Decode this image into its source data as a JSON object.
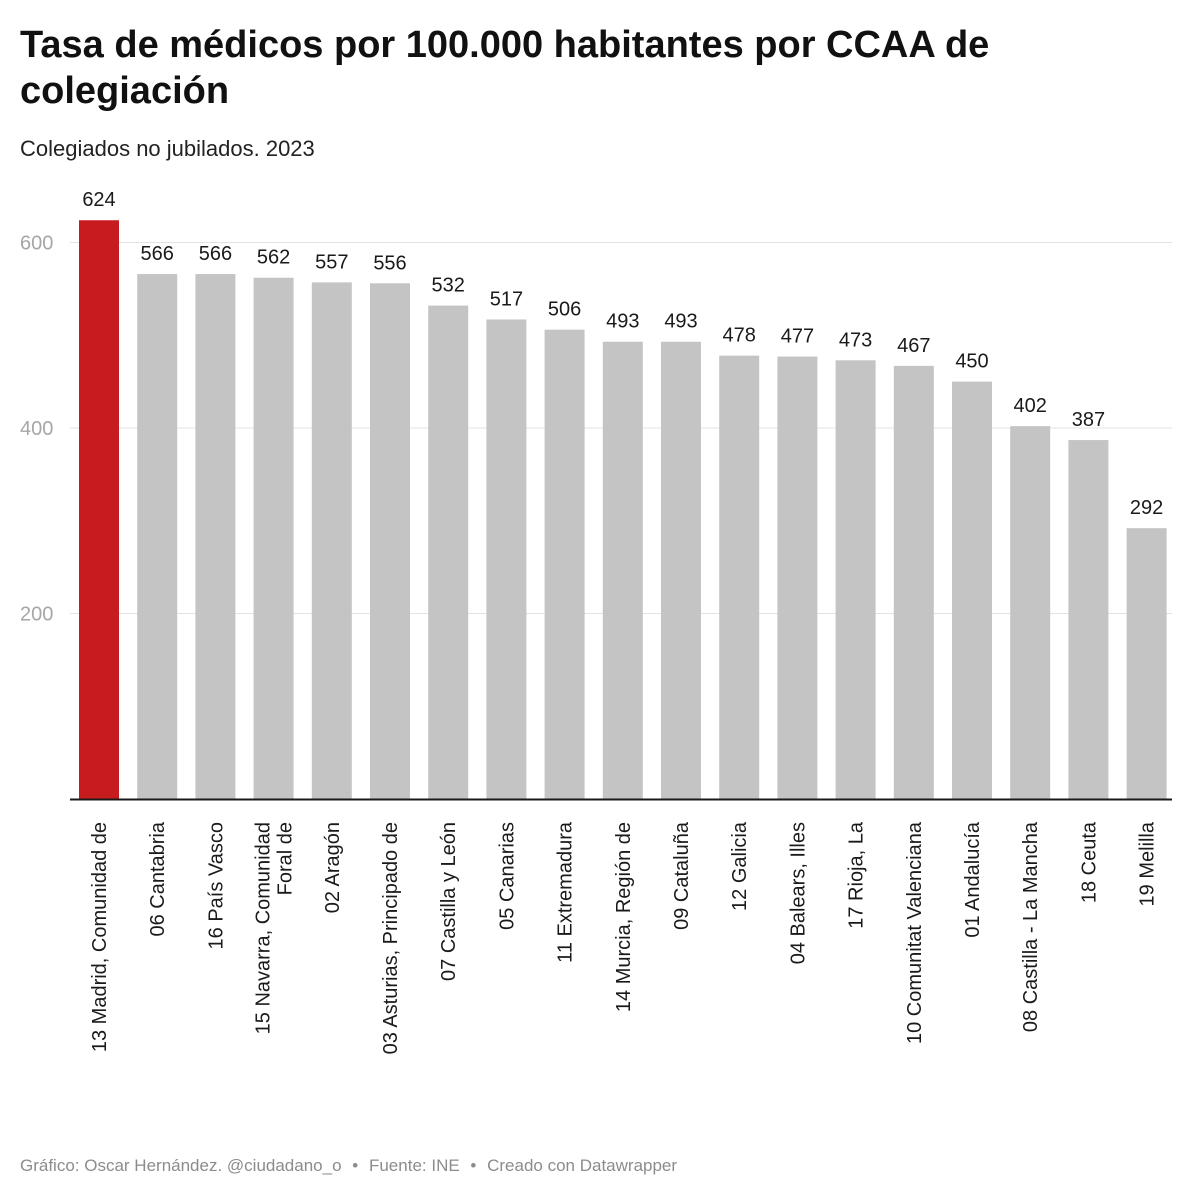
{
  "header": {
    "title": "Tasa de médicos por 100.000 habitantes por CCAA de colegiación",
    "subtitle": "Colegiados no jubilados. 2023"
  },
  "footer": {
    "credit": "Gráfico: Oscar Hernández. @ciudadano_o",
    "separator": "•",
    "source": "Fuente: INE",
    "tool": "Creado con Datawrapper"
  },
  "chart_data": {
    "type": "bar",
    "title": "Tasa de médicos por 100.000 habitantes por CCAA de colegiación",
    "subtitle": "Colegiados no jubilados. 2023",
    "xlabel": "",
    "ylabel": "",
    "ylim": [
      0,
      650
    ],
    "yticks": [
      200,
      400,
      600
    ],
    "grid": true,
    "categories": [
      "13 Madrid, Comunidad de",
      "06 Cantabria",
      "16 País Vasco",
      "15 Navarra, Comunidad Foral de",
      "02 Aragón",
      "03 Asturias, Principado de",
      "07 Castilla y León",
      "05 Canarias",
      "11 Extremadura",
      "14 Murcia, Región de",
      "09 Cataluña",
      "12 Galicia",
      "04 Balears, Illes",
      "17 Rioja, La",
      "10 Comunitat Valenciana",
      "01 Andalucía",
      "08 Castilla - La Mancha",
      "18 Ceuta",
      "19 Melilla"
    ],
    "label_lines": [
      [
        "13 Madrid, Comunidad de"
      ],
      [
        "06 Cantabria"
      ],
      [
        "16 País Vasco"
      ],
      [
        "15 Navarra, Comunidad",
        "Foral de"
      ],
      [
        "02 Aragón"
      ],
      [
        "03 Asturias, Principado de"
      ],
      [
        "07 Castilla y León"
      ],
      [
        "05 Canarias"
      ],
      [
        "11 Extremadura"
      ],
      [
        "14 Murcia, Región de"
      ],
      [
        "09 Cataluña"
      ],
      [
        "12 Galicia"
      ],
      [
        "04 Balears, Illes"
      ],
      [
        "17 Rioja, La"
      ],
      [
        "10 Comunitat Valenciana"
      ],
      [
        "01 Andalucía"
      ],
      [
        "08 Castilla - La Mancha"
      ],
      [
        "18 Ceuta"
      ],
      [
        "19 Melilla"
      ]
    ],
    "values": [
      624,
      566,
      566,
      562,
      557,
      556,
      532,
      517,
      506,
      493,
      493,
      478,
      477,
      473,
      467,
      450,
      402,
      387,
      292
    ],
    "highlight_index": 0,
    "colors": {
      "highlight": "#c71c1f",
      "default": "#c4c4c4",
      "grid": "#e3e3e3",
      "tick_label": "#a6a6a6",
      "axis": "#1a1a1a",
      "value_label": "#1a1a1a",
      "category_label": "#1a1a1a"
    }
  }
}
